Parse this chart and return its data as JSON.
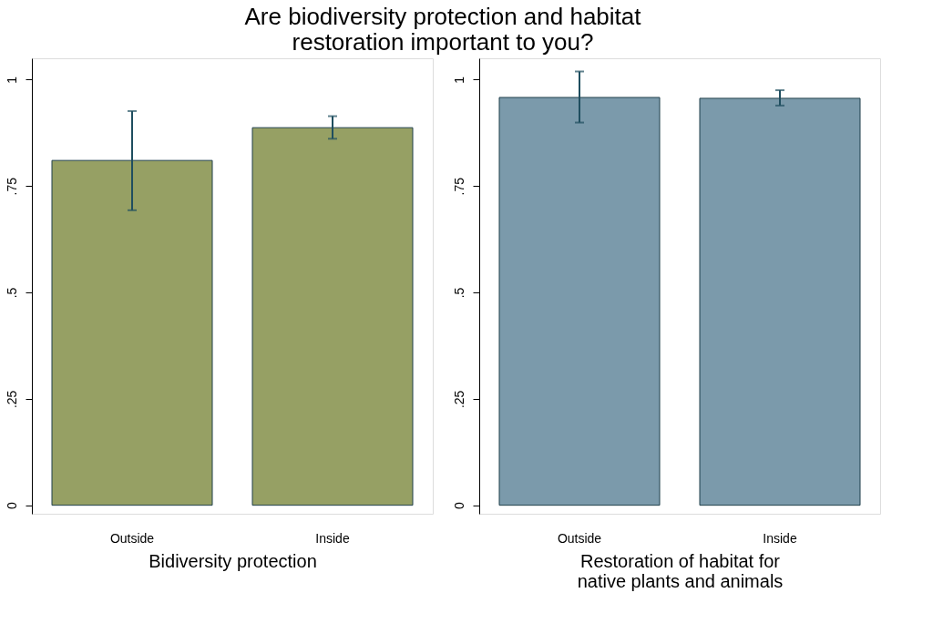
{
  "chart_data": [
    {
      "type": "bar",
      "title": "Are biodiversity protection and habitat restoration important to you?",
      "categories": [
        "Outside",
        "Inside"
      ],
      "values": [
        0.81,
        0.887
      ],
      "errors": [
        [
          0.693,
          0.926
        ],
        [
          0.861,
          0.914
        ]
      ],
      "color": "#96a064",
      "xlabel": "Bidiversity protection",
      "ylim": [
        -0.02,
        1.05
      ],
      "yticks": [
        0,
        {
          "value": 0.25,
          "label": ".25"
        },
        {
          "value": 0.5,
          "label": ".5"
        },
        {
          "value": 0.75,
          "label": ".75"
        },
        1
      ],
      "grid": false
    },
    {
      "type": "bar",
      "categories": [
        "Outside",
        "Inside"
      ],
      "values": [
        0.958,
        0.956
      ],
      "errors": [
        [
          0.899,
          1.019
        ],
        [
          0.939,
          0.975
        ]
      ],
      "color": "#7b9aab",
      "xlabel": "Restoration of habitat for native plants and animals",
      "ylim": [
        -0.02,
        1.05
      ],
      "yticks": [
        0,
        {
          "value": 0.25,
          "label": ".25"
        },
        {
          "value": 0.5,
          "label": ".5"
        },
        {
          "value": 0.75,
          "label": ".75"
        },
        1
      ],
      "grid": false
    }
  ]
}
